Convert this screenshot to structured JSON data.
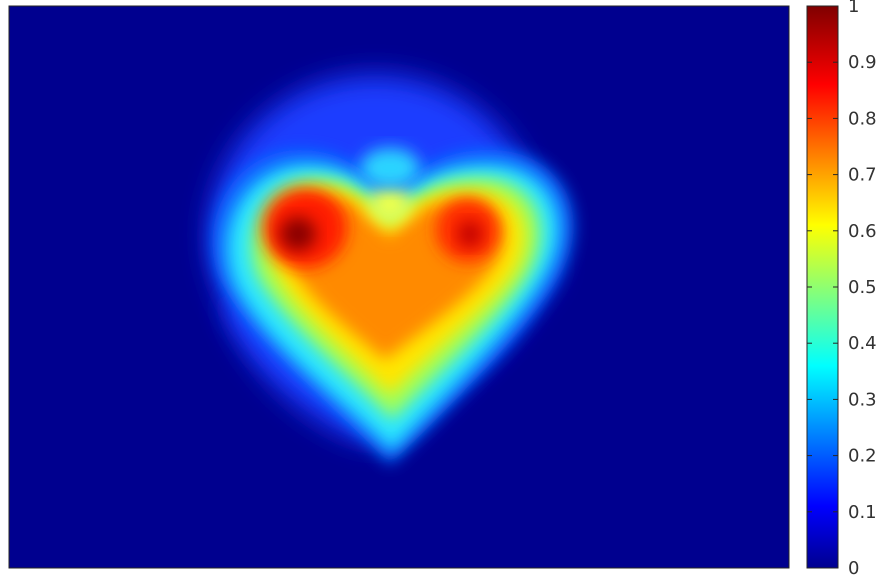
{
  "chart_data": {
    "type": "heatmap",
    "title": "",
    "xlabel": "",
    "ylabel": "",
    "colormap": "jet",
    "color_range": [
      0,
      1
    ],
    "colorbar": {
      "ticks": [
        0,
        0.1,
        0.2,
        0.3,
        0.4,
        0.5,
        0.6,
        0.7,
        0.8,
        0.9,
        1
      ],
      "tick_labels": [
        "0",
        "0.1",
        "0.2",
        "0.3",
        "0.4",
        "0.5",
        "0.6",
        "0.7",
        "0.8",
        "0.9",
        "1"
      ],
      "placement": "right"
    },
    "axes_ticks_visible": false,
    "grid": false,
    "description_shape": "heart",
    "features": [
      {
        "name": "left-lobe-peak",
        "value": 1.0
      },
      {
        "name": "right-lobe-peak",
        "value": 0.92
      },
      {
        "name": "center-body",
        "value": 0.78
      },
      {
        "name": "background",
        "value": 0.0
      }
    ]
  }
}
